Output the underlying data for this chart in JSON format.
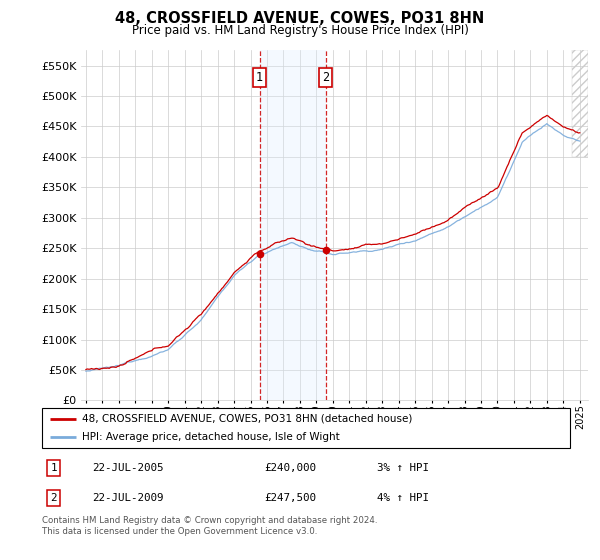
{
  "title": "48, CROSSFIELD AVENUE, COWES, PO31 8HN",
  "subtitle": "Price paid vs. HM Land Registry's House Price Index (HPI)",
  "ylim": [
    0,
    575000
  ],
  "yticks": [
    0,
    50000,
    100000,
    150000,
    200000,
    250000,
    300000,
    350000,
    400000,
    450000,
    500000,
    550000
  ],
  "ytick_labels": [
    "£0",
    "£50K",
    "£100K",
    "£150K",
    "£200K",
    "£250K",
    "£300K",
    "£350K",
    "£400K",
    "£450K",
    "£500K",
    "£550K"
  ],
  "sale1_year": 2005.554,
  "sale1_price": 240000,
  "sale2_year": 2009.554,
  "sale2_price": 247500,
  "red_color": "#cc0000",
  "blue_color": "#7aabdb",
  "shade_color": "#ddeeff",
  "grid_color": "#cccccc",
  "legend_red": "48, CROSSFIELD AVENUE, COWES, PO31 8HN (detached house)",
  "legend_blue": "HPI: Average price, detached house, Isle of Wight",
  "footer": "Contains HM Land Registry data © Crown copyright and database right 2024.\nThis data is licensed under the Open Government Licence v3.0.",
  "x_start_year": 1995,
  "x_end_year": 2025
}
